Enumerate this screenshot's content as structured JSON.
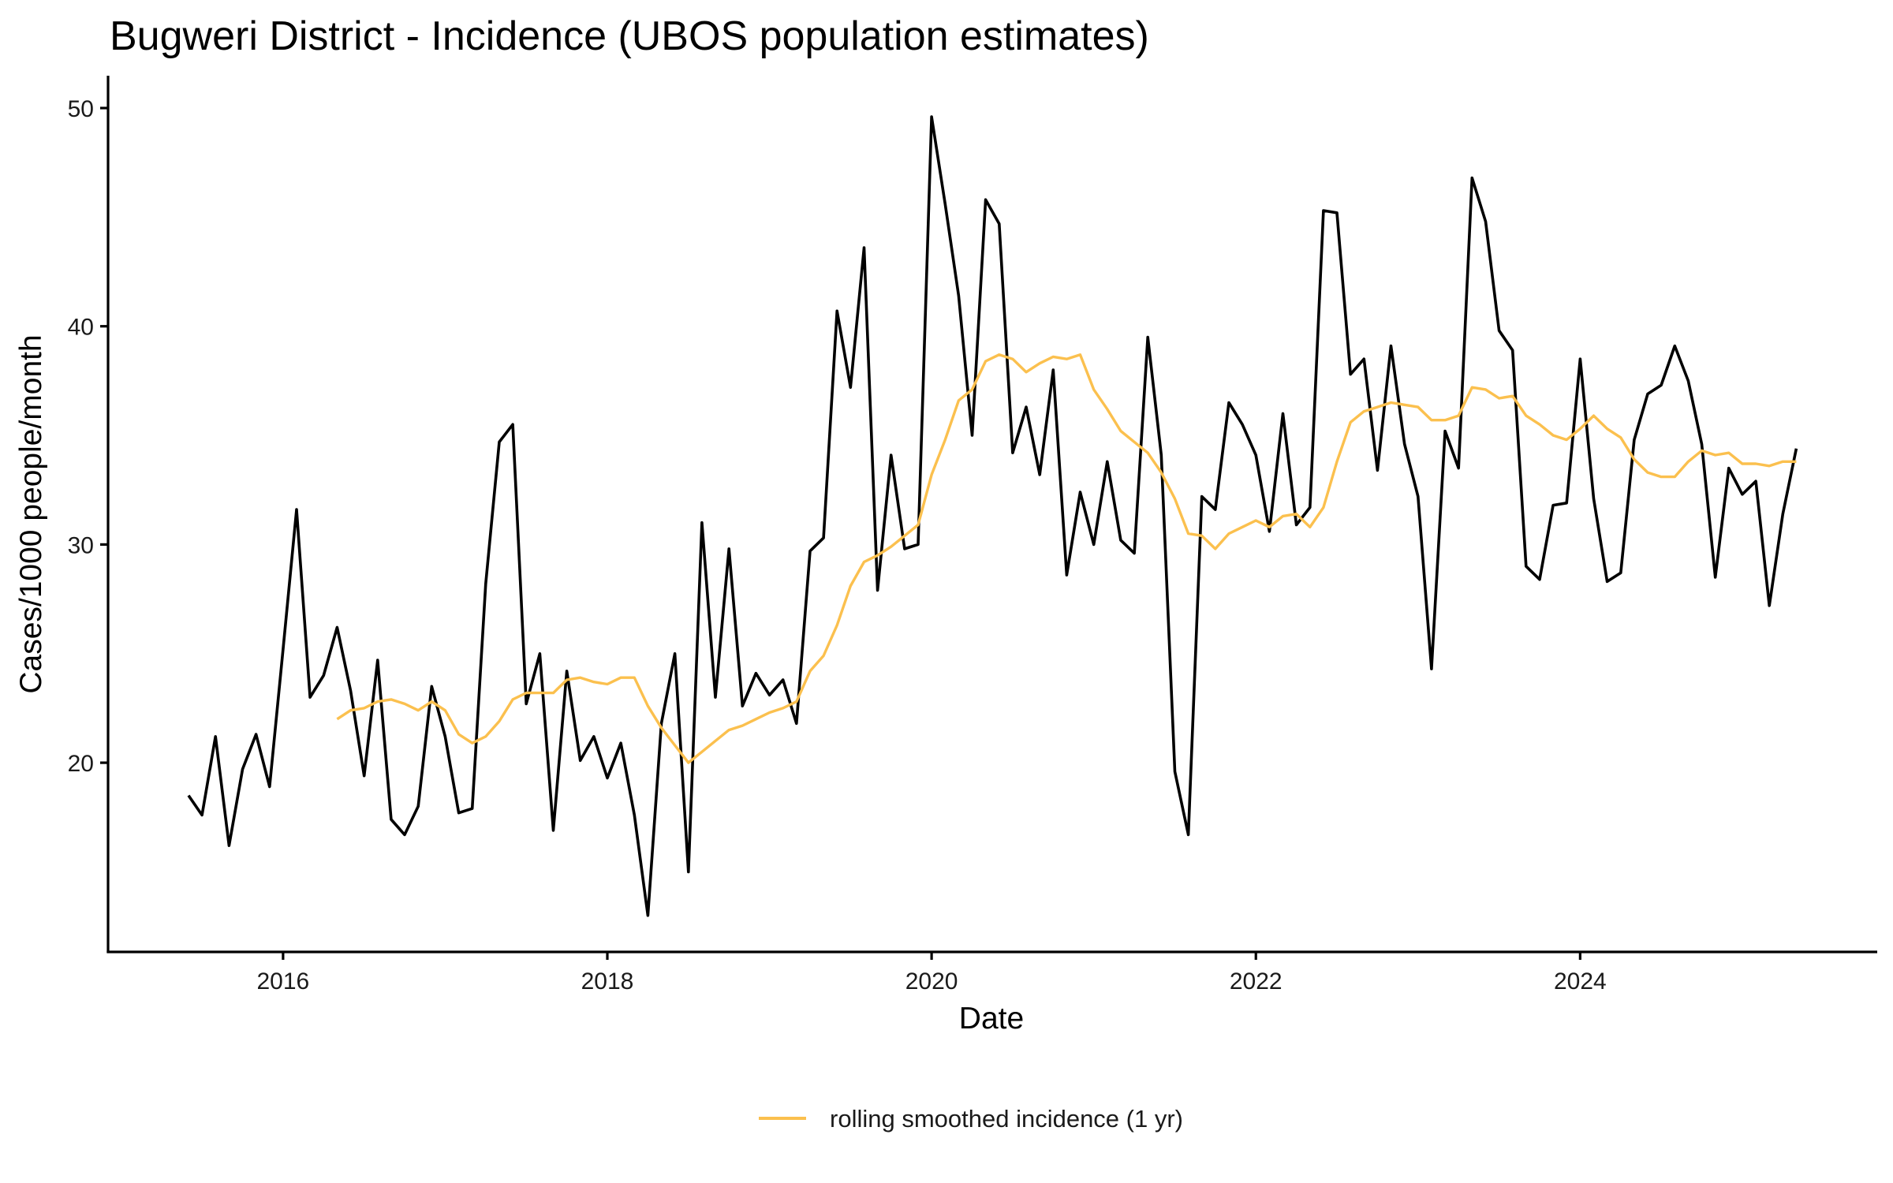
{
  "chart_data": {
    "type": "line",
    "title": "Bugweri District - Incidence (UBOS population estimates)",
    "xlabel": "Date",
    "ylabel": "Cases/1000 people/month",
    "x_ticks": [
      "2016",
      "2018",
      "2020",
      "2022",
      "2024"
    ],
    "y_ticks": [
      20,
      30,
      40,
      50
    ],
    "xlim": [
      "2015-01",
      "2025-10"
    ],
    "ylim": [
      12.3,
      51.5
    ],
    "grid": false,
    "legend": {
      "position": "bottom",
      "entries": [
        {
          "label": "rolling smoothed incidence (1 yr)",
          "color": "#FBC04E"
        }
      ]
    },
    "series": [
      {
        "name": "incidence",
        "color": "#000000",
        "in_legend": false,
        "start": "2015-06",
        "values": [
          18.5,
          17.6,
          21.2,
          16.2,
          19.7,
          21.3,
          18.9,
          25.2,
          31.6,
          23.0,
          24.0,
          26.2,
          23.3,
          19.4,
          24.7,
          17.4,
          16.7,
          18.0,
          23.5,
          21.2,
          17.7,
          17.9,
          28.2,
          34.7,
          35.5,
          22.7,
          25.0,
          16.9,
          24.2,
          20.1,
          21.2,
          19.3,
          20.9,
          17.6,
          13.0,
          21.8,
          25.0,
          15.0,
          31.0,
          23.0,
          29.8,
          22.6,
          24.1,
          23.1,
          23.8,
          21.8,
          29.7,
          30.3,
          40.7,
          37.2,
          43.6,
          27.9,
          34.1,
          29.8,
          30.0,
          49.6,
          45.6,
          41.4,
          35.0,
          45.8,
          44.7,
          34.2,
          36.3,
          33.2,
          38.0,
          28.6,
          32.4,
          30.0,
          33.8,
          30.2,
          29.6,
          39.5,
          34.1,
          19.6,
          16.7,
          32.2,
          31.6,
          36.5,
          35.5,
          34.1,
          30.6,
          36.0,
          30.9,
          31.7,
          45.3,
          45.2,
          37.8,
          38.5,
          33.4,
          39.1,
          34.6,
          32.2,
          24.3,
          35.2,
          33.5,
          46.8,
          44.8,
          39.8,
          38.9,
          29.0,
          28.4,
          31.8,
          31.9,
          38.5,
          32.1,
          28.3,
          28.7,
          34.8,
          36.9,
          37.3,
          39.1,
          37.5,
          34.6,
          28.5,
          33.5,
          32.3,
          32.9,
          27.2,
          31.4,
          34.4
        ]
      },
      {
        "name": "rolling smoothed incidence (1 yr)",
        "color": "#FBC04E",
        "in_legend": true,
        "start": "2016-05",
        "values": [
          22.0,
          22.4,
          22.5,
          22.8,
          22.9,
          22.7,
          22.4,
          22.8,
          22.4,
          21.3,
          20.9,
          21.2,
          21.9,
          22.9,
          23.2,
          23.2,
          23.2,
          23.8,
          23.9,
          23.7,
          23.6,
          23.9,
          23.9,
          22.6,
          21.6,
          20.8,
          20.0,
          20.5,
          21.0,
          21.5,
          21.7,
          22.0,
          22.3,
          22.5,
          22.8,
          24.2,
          24.9,
          26.3,
          28.1,
          29.2,
          29.5,
          29.9,
          30.4,
          30.9,
          33.2,
          34.8,
          36.6,
          37.1,
          38.4,
          38.7,
          38.5,
          37.9,
          38.3,
          38.6,
          38.5,
          38.7,
          37.1,
          36.2,
          35.2,
          34.7,
          34.2,
          33.3,
          32.1,
          30.5,
          30.4,
          29.8,
          30.5,
          30.8,
          31.1,
          30.8,
          31.3,
          31.4,
          30.8,
          31.7,
          33.8,
          35.6,
          36.1,
          36.3,
          36.5,
          36.4,
          36.3,
          35.7,
          35.7,
          35.9,
          37.2,
          37.1,
          36.7,
          36.8,
          35.9,
          35.5,
          35.0,
          34.8,
          35.3,
          35.9,
          35.3,
          34.9,
          33.9,
          33.3,
          33.1,
          33.1,
          33.8,
          34.3,
          34.1,
          34.2,
          33.7,
          33.7,
          33.6,
          33.8,
          33.8
        ]
      }
    ]
  }
}
